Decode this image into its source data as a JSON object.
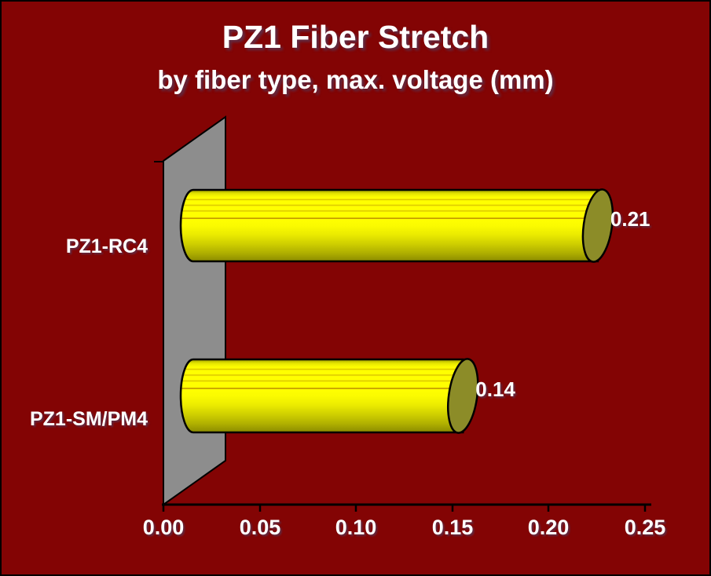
{
  "page": {
    "background_color": "#830404",
    "border_color": "#000000"
  },
  "chart_data": {
    "type": "bar",
    "orientation": "horizontal",
    "style": "3d-cylinder",
    "title": "PZ1 Fiber Stretch",
    "subtitle": "by fiber type, max. voltage (mm)",
    "categories": [
      "PZ1-RC4",
      "PZ1-SM/PM4"
    ],
    "values": [
      0.21,
      0.14
    ],
    "value_labels": [
      "0.21",
      "0.14"
    ],
    "xlim": [
      0,
      0.25
    ],
    "xtick_labels": [
      "0.00",
      "0.05",
      "0.10",
      "0.15",
      "0.20",
      "0.25"
    ],
    "ylabel": "",
    "xlabel": "",
    "grid": false,
    "legend_visible": false,
    "colors": {
      "background": "#830404",
      "bar_body_bright": "#ffff00",
      "bar_body_dark": "#8f8f00",
      "bar_cap": "#8c8c28",
      "wall": "#8d8d8d",
      "outline": "#000000",
      "text": "#ffffff"
    }
  }
}
